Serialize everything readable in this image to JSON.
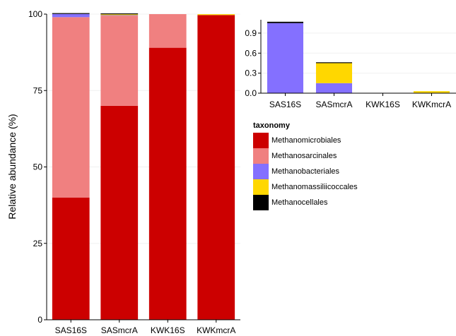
{
  "colors": {
    "Methanomicrobiales": "#cc0000",
    "Methanosarcinales": "#f08080",
    "Methanobacteriales": "#8470ff",
    "Methanomassiliicoccales": "#ffd700",
    "Methanocellales": "#000000"
  },
  "legend": {
    "title": "taxonomy",
    "items": [
      "Methanomicrobiales",
      "Methanosarcinales",
      "Methanobacteriales",
      "Methanomassiliicoccales",
      "Methanocellales"
    ]
  },
  "chart_data": [
    {
      "type": "bar",
      "stacked": true,
      "categories": [
        "SAS16S",
        "SASmcrA",
        "KWK16S",
        "KWKmcrA"
      ],
      "ylabel": "Relative abundance (%)",
      "xlabel": "",
      "ylim": [
        0,
        100
      ],
      "yticks": [
        0,
        25,
        50,
        75,
        100
      ],
      "grid": false,
      "series": [
        {
          "name": "Methanomicrobiales",
          "values": [
            40,
            70,
            89,
            99.7
          ]
        },
        {
          "name": "Methanosarcinales",
          "values": [
            59,
            29.5,
            11,
            0
          ]
        },
        {
          "name": "Methanobacteriales",
          "values": [
            1.05,
            0.15,
            0,
            0
          ]
        },
        {
          "name": "Methanomassiliicoccales",
          "values": [
            0,
            0.3,
            0,
            0.03
          ]
        },
        {
          "name": "Methanocellales",
          "values": [
            0.02,
            0.01,
            0,
            0
          ]
        }
      ]
    },
    {
      "type": "bar",
      "stacked": true,
      "categories": [
        "SAS16S",
        "SASmcrA",
        "KWK16S",
        "KWKmcrA"
      ],
      "ylabel": "",
      "xlabel": "",
      "ylim": [
        0,
        1.1
      ],
      "yticks": [
        "0.0",
        "0.3",
        "0.6",
        "0.9"
      ],
      "grid": false,
      "series": [
        {
          "name": "Methanobacteriales",
          "values": [
            1.05,
            0.15,
            0,
            0
          ]
        },
        {
          "name": "Methanomassiliicoccales",
          "values": [
            0,
            0.3,
            0,
            0.03
          ]
        },
        {
          "name": "Methanocellales",
          "values": [
            0.02,
            0.01,
            0,
            0
          ]
        }
      ]
    }
  ]
}
